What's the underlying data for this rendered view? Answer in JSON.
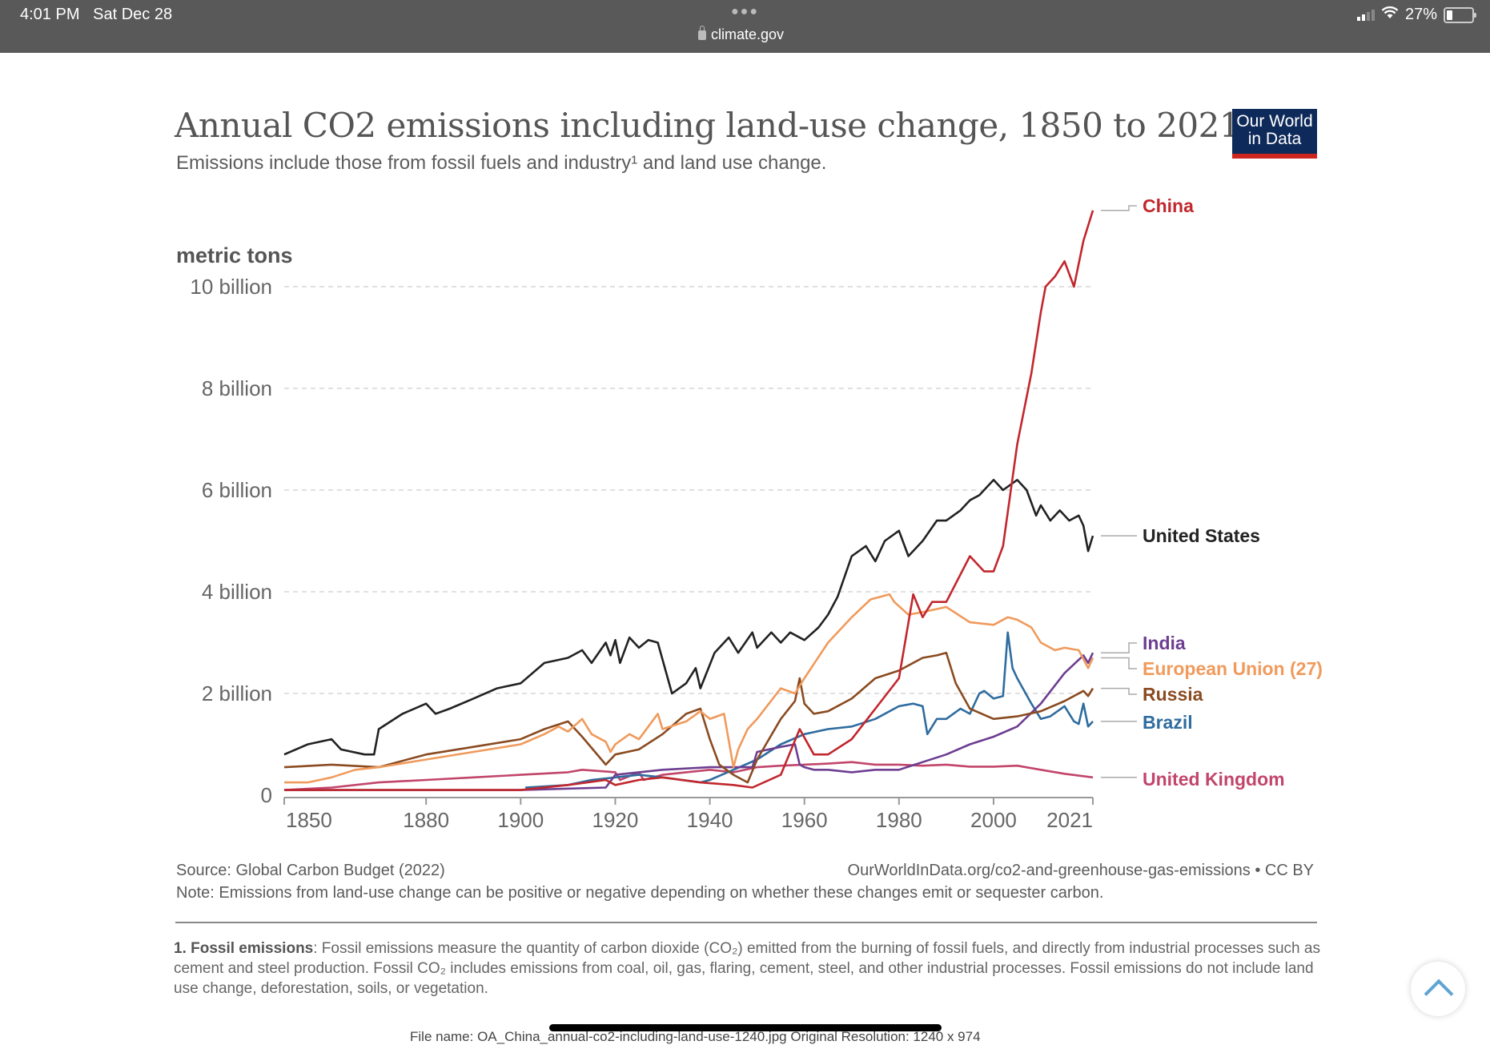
{
  "status_bar": {
    "time": "4:01 PM",
    "date": "Sat Dec 28",
    "url": "climate.gov",
    "battery": "27%",
    "battery_level": 0.27
  },
  "logo": {
    "line1": "Our World",
    "line2": "in Data"
  },
  "footer": {
    "source": "Source: Global Carbon Budget (2022)",
    "url": "OurWorldInData.org/co2-and-greenhouse-gas-emissions • CC BY",
    "note": "Note: Emissions from land-use change can be positive or negative depending on whether these changes emit or sequester carbon.",
    "footnote_title": "1. Fossil emissions",
    "footnote_text": ": Fossil emissions measure the quantity of carbon dioxide (CO₂) emitted from the burning of fossil fuels, and directly from industrial processes such as cement and steel production. Fossil CO₂ includes emissions from coal, oil, gas, flaring, cement, steel, and other industrial processes. Fossil emissions do not include land use change, deforestation, soils, or vegetation.",
    "file_info": "File name: OA_China_annual-co2-including-land-use-1240.jpg  Original Resolution: 1240 x 974"
  },
  "chart_data": {
    "type": "line",
    "title": "Annual CO2 emissions including land-use change, 1850 to 2021",
    "subtitle": "Emissions include those from fossil fuels and industry¹ and land use change.",
    "ylabel": "metric tons",
    "xlabel": "",
    "xlim": [
      1850,
      2021
    ],
    "ylim": [
      0,
      11600000000
    ],
    "x_ticks": [
      1850,
      1880,
      1900,
      1920,
      1940,
      1960,
      1980,
      2000,
      2021
    ],
    "x_tick_labels": [
      "1850",
      "1880",
      "1900",
      "1920",
      "1940",
      "1960",
      "1980",
      "2000",
      "2021"
    ],
    "y_ticks": [
      0,
      2000000000,
      4000000000,
      6000000000,
      8000000000,
      10000000000
    ],
    "y_tick_labels": [
      "0",
      "2 billion",
      "4 billion",
      "6 billion",
      "8 billion",
      "10 billion"
    ],
    "grid": "horizontal-dashed",
    "legend": "right (line-end labels)",
    "series": [
      {
        "name": "China",
        "color": "#c1272d",
        "x": [
          1850,
          1900,
          1910,
          1918,
          1920,
          1925,
          1930,
          1938,
          1945,
          1949,
          1955,
          1959,
          1962,
          1965,
          1970,
          1975,
          1980,
          1983,
          1985,
          1987,
          1990,
          1995,
          1998,
          2000,
          2002,
          2005,
          2008,
          2010,
          2011,
          2013,
          2015,
          2017,
          2019,
          2021
        ],
        "y": [
          100000000.0,
          100000000.0,
          200000000.0,
          300000000.0,
          200000000.0,
          300000000.0,
          350000000.0,
          250000000.0,
          200000000.0,
          150000000.0,
          400000000.0,
          1300000000.0,
          800000000.0,
          800000000.0,
          1100000000.0,
          1700000000.0,
          2300000000.0,
          3950000000.0,
          3500000000.0,
          3800000000.0,
          3800000000.0,
          4700000000.0,
          4400000000.0,
          4400000000.0,
          4900000000.0,
          6900000000.0,
          8300000000.0,
          9500000000.0,
          10000000000.0,
          10200000000.0,
          10500000000.0,
          10000000000.0,
          10900000000.0,
          11500000000.0
        ]
      },
      {
        "name": "United States",
        "color": "#222222",
        "x": [
          1850,
          1855,
          1860,
          1862,
          1867,
          1869,
          1870,
          1875,
          1880,
          1882,
          1885,
          1890,
          1895,
          1900,
          1905,
          1910,
          1913,
          1915,
          1918,
          1919,
          1920,
          1921,
          1923,
          1925,
          1927,
          1929,
          1932,
          1935,
          1937,
          1938,
          1941,
          1944,
          1946,
          1949,
          1950,
          1953,
          1955,
          1957,
          1960,
          1963,
          1965,
          1967,
          1970,
          1973,
          1975,
          1977,
          1980,
          1982,
          1985,
          1988,
          1990,
          1993,
          1995,
          1997,
          2000,
          2002,
          2005,
          2007,
          2009,
          2010,
          2012,
          2014,
          2016,
          2018,
          2019,
          2020,
          2021
        ],
        "y": [
          800000000.0,
          1000000000.0,
          1100000000.0,
          900000000.0,
          800000000.0,
          800000000.0,
          1300000000.0,
          1600000000.0,
          1800000000.0,
          1600000000.0,
          1700000000.0,
          1900000000.0,
          2100000000.0,
          2200000000.0,
          2600000000.0,
          2700000000.0,
          2850000000.0,
          2600000000.0,
          3000000000.0,
          2750000000.0,
          3050000000.0,
          2600000000.0,
          3100000000.0,
          2900000000.0,
          3050000000.0,
          3000000000.0,
          2000000000.0,
          2200000000.0,
          2500000000.0,
          2100000000.0,
          2800000000.0,
          3100000000.0,
          2800000000.0,
          3200000000.0,
          2900000000.0,
          3200000000.0,
          3000000000.0,
          3200000000.0,
          3050000000.0,
          3300000000.0,
          3550000000.0,
          3900000000.0,
          4700000000.0,
          4900000000.0,
          4600000000.0,
          5000000000.0,
          5200000000.0,
          4700000000.0,
          5000000000.0,
          5400000000.0,
          5400000000.0,
          5600000000.0,
          5800000000.0,
          5900000000.0,
          6200000000.0,
          6000000000.0,
          6200000000.0,
          6000000000.0,
          5500000000.0,
          5700000000.0,
          5400000000.0,
          5600000000.0,
          5400000000.0,
          5500000000.0,
          5300000000.0,
          4800000000.0,
          5100000000.0
        ]
      },
      {
        "name": "India",
        "color": "#6d3e91",
        "x": [
          1850,
          1900,
          1918,
          1920,
          1925,
          1930,
          1940,
          1947,
          1949,
          1950,
          1955,
          1958,
          1959,
          1960,
          1962,
          1965,
          1970,
          1975,
          1980,
          1985,
          1990,
          1995,
          2000,
          2005,
          2010,
          2015,
          2019,
          2020,
          2021
        ],
        "y": [
          100000000.0,
          100000000.0,
          150000000.0,
          400000000.0,
          450000000.0,
          500000000.0,
          550000000.0,
          550000000.0,
          550000000.0,
          850000000.0,
          950000000.0,
          1000000000.0,
          600000000.0,
          550000000.0,
          500000000.0,
          500000000.0,
          450000000.0,
          500000000.0,
          500000000.0,
          650000000.0,
          800000000.0,
          1000000000.0,
          1150000000.0,
          1350000000.0,
          1800000000.0,
          2400000000.0,
          2750000000.0,
          2600000000.0,
          2800000000.0
        ]
      },
      {
        "name": "European Union (27)",
        "color": "#f09a5c",
        "x": [
          1850,
          1855,
          1860,
          1865,
          1870,
          1880,
          1890,
          1900,
          1905,
          1908,
          1910,
          1913,
          1915,
          1918,
          1919,
          1920,
          1923,
          1925,
          1927,
          1929,
          1930,
          1935,
          1938,
          1940,
          1943,
          1945,
          1946,
          1948,
          1950,
          1955,
          1958,
          1960,
          1965,
          1970,
          1974,
          1978,
          1979,
          1982,
          1985,
          1990,
          1995,
          2000,
          2003,
          2005,
          2008,
          2010,
          2013,
          2015,
          2018,
          2020,
          2021
        ],
        "y": [
          250000000.0,
          250000000.0,
          350000000.0,
          500000000.0,
          550000000.0,
          700000000.0,
          850000000.0,
          1000000000.0,
          1200000000.0,
          1350000000.0,
          1250000000.0,
          1500000000.0,
          1200000000.0,
          1050000000.0,
          850000000.0,
          1000000000.0,
          1200000000.0,
          1100000000.0,
          1350000000.0,
          1600000000.0,
          1300000000.0,
          1450000000.0,
          1650000000.0,
          1500000000.0,
          1600000000.0,
          550000000.0,
          900000000.0,
          1300000000.0,
          1500000000.0,
          2100000000.0,
          2000000000.0,
          2300000000.0,
          3000000000.0,
          3500000000.0,
          3850000000.0,
          3950000000.0,
          3800000000.0,
          3550000000.0,
          3600000000.0,
          3700000000.0,
          3400000000.0,
          3350000000.0,
          3500000000.0,
          3450000000.0,
          3300000000.0,
          3000000000.0,
          2850000000.0,
          2900000000.0,
          2850000000.0,
          2500000000.0,
          2700000000.0
        ]
      },
      {
        "name": "Russia",
        "color": "#8a4b21",
        "x": [
          1850,
          1860,
          1870,
          1880,
          1890,
          1900,
          1905,
          1910,
          1913,
          1918,
          1920,
          1925,
          1930,
          1935,
          1938,
          1940,
          1942,
          1945,
          1948,
          1950,
          1955,
          1958,
          1959,
          1960,
          1962,
          1965,
          1970,
          1975,
          1980,
          1985,
          1988,
          1990,
          1992,
          1995,
          2000,
          2005,
          2010,
          2015,
          2019,
          2020,
          2021
        ],
        "y": [
          550000000.0,
          600000000.0,
          550000000.0,
          800000000.0,
          950000000.0,
          1100000000.0,
          1300000000.0,
          1450000000.0,
          1150000000.0,
          600000000.0,
          800000000.0,
          900000000.0,
          1200000000.0,
          1600000000.0,
          1700000000.0,
          1100000000.0,
          600000000.0,
          400000000.0,
          250000000.0,
          700000000.0,
          1500000000.0,
          1850000000.0,
          2300000000.0,
          1800000000.0,
          1600000000.0,
          1650000000.0,
          1900000000.0,
          2300000000.0,
          2450000000.0,
          2700000000.0,
          2750000000.0,
          2800000000.0,
          2200000000.0,
          1700000000.0,
          1500000000.0,
          1550000000.0,
          1650000000.0,
          1850000000.0,
          2050000000.0,
          1950000000.0,
          2100000000.0
        ]
      },
      {
        "name": "Brazil",
        "color": "#2f6c9f",
        "x": [
          1901,
          1910,
          1915,
          1920,
          1925,
          1930,
          1938,
          1940,
          1945,
          1950,
          1955,
          1960,
          1965,
          1970,
          1975,
          1980,
          1983,
          1985,
          1986,
          1988,
          1990,
          1993,
          1995,
          1997,
          1998,
          2000,
          2002,
          2003,
          2004,
          2005,
          2008,
          2010,
          2012,
          2015,
          2017,
          2018,
          2019,
          2020,
          2021
        ],
        "y": [
          150000000.0,
          200000000.0,
          300000000.0,
          350000000.0,
          400000000.0,
          350000000.0,
          250000000.0,
          300000000.0,
          500000000.0,
          700000000.0,
          1000000000.0,
          1200000000.0,
          1300000000.0,
          1350000000.0,
          1500000000.0,
          1750000000.0,
          1800000000.0,
          1750000000.0,
          1200000000.0,
          1500000000.0,
          1500000000.0,
          1700000000.0,
          1600000000.0,
          2000000000.0,
          2050000000.0,
          1900000000.0,
          1950000000.0,
          3200000000.0,
          2500000000.0,
          2300000000.0,
          1800000000.0,
          1500000000.0,
          1550000000.0,
          1750000000.0,
          1450000000.0,
          1400000000.0,
          1800000000.0,
          1350000000.0,
          1450000000.0
        ]
      },
      {
        "name": "United Kingdom",
        "color": "#c2456b",
        "x": [
          1850,
          1860,
          1870,
          1880,
          1890,
          1900,
          1910,
          1913,
          1920,
          1921,
          1925,
          1926,
          1930,
          1935,
          1940,
          1945,
          1950,
          1955,
          1960,
          1965,
          1970,
          1975,
          1980,
          1985,
          1990,
          1995,
          2000,
          2005,
          2010,
          2015,
          2021
        ],
        "y": [
          100000000.0,
          150000000.0,
          250000000.0,
          300000000.0,
          350000000.0,
          400000000.0,
          450000000.0,
          500000000.0,
          450000000.0,
          300000000.0,
          450000000.0,
          300000000.0,
          400000000.0,
          450000000.0,
          500000000.0,
          450000000.0,
          550000000.0,
          580000000.0,
          600000000.0,
          620000000.0,
          650000000.0,
          600000000.0,
          600000000.0,
          580000000.0,
          600000000.0,
          560000000.0,
          560000000.0,
          580000000.0,
          500000000.0,
          420000000.0,
          350000000.0
        ]
      }
    ]
  }
}
